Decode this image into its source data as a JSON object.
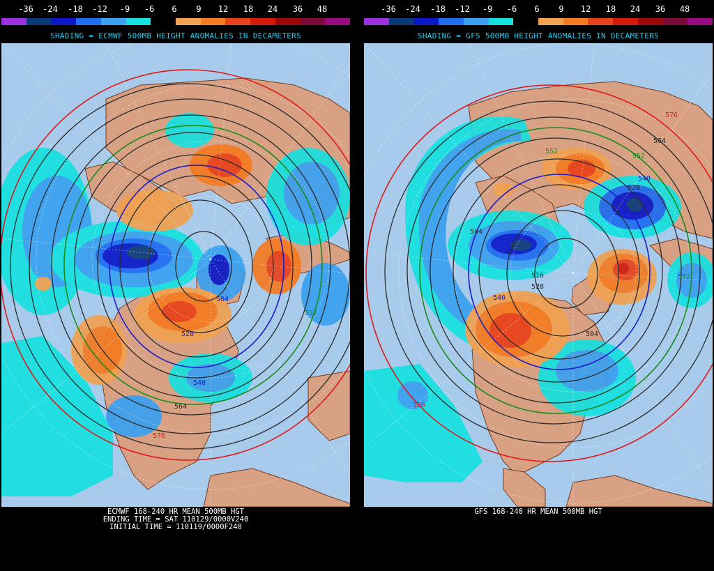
{
  "scale": {
    "labels": [
      "-36",
      "-24",
      "-18",
      "-12",
      "-9",
      "-6",
      "6",
      "9",
      "12",
      "18",
      "24",
      "36",
      "48"
    ],
    "colors": [
      "#9b30e0",
      "#0b3a7a",
      "#0a18c8",
      "#1e6cf0",
      "#3aa0f0",
      "#16e0e0",
      "#000000",
      "#f0a050",
      "#f57a22",
      "#e8421a",
      "#d41a0a",
      "#a00808",
      "#7a0a3a",
      "#9a0a80"
    ]
  },
  "panels": {
    "left": {
      "shading_title": "SHADING = ECMWF 500MB HEIGHT ANOMALIES IN DECAMETERS",
      "caption_lines": [
        "ECMWF 168-240 HR MEAN 500MB HGT",
        "ENDING TIME = SAT 110129/0000V240",
        "INITIAL TIME = 110119/0000F240"
      ],
      "contour_labels": [
        "504",
        "528",
        "540",
        "552",
        "564",
        "576"
      ]
    },
    "right": {
      "shading_title": "SHADING = GFS 500MB HEIGHT ANOMALIES IN DECAMETERS",
      "caption_lines": [
        "GFS 168-240 HR MEAN 500MB HGT"
      ],
      "contour_labels": [
        "576",
        "564",
        "552",
        "540",
        "528",
        "504",
        "528",
        "516",
        "552",
        "540",
        "552",
        "576",
        "504"
      ]
    }
  },
  "colors": {
    "ocean": "#a8cbec",
    "land": "#d9a184",
    "coast": "#7a3a1a",
    "grid": "#ffffff",
    "contour": "#2a2a2a",
    "contour_540": "#1a1ac8",
    "contour_552": "#1a8a1a",
    "contour_576": "#e01818"
  }
}
